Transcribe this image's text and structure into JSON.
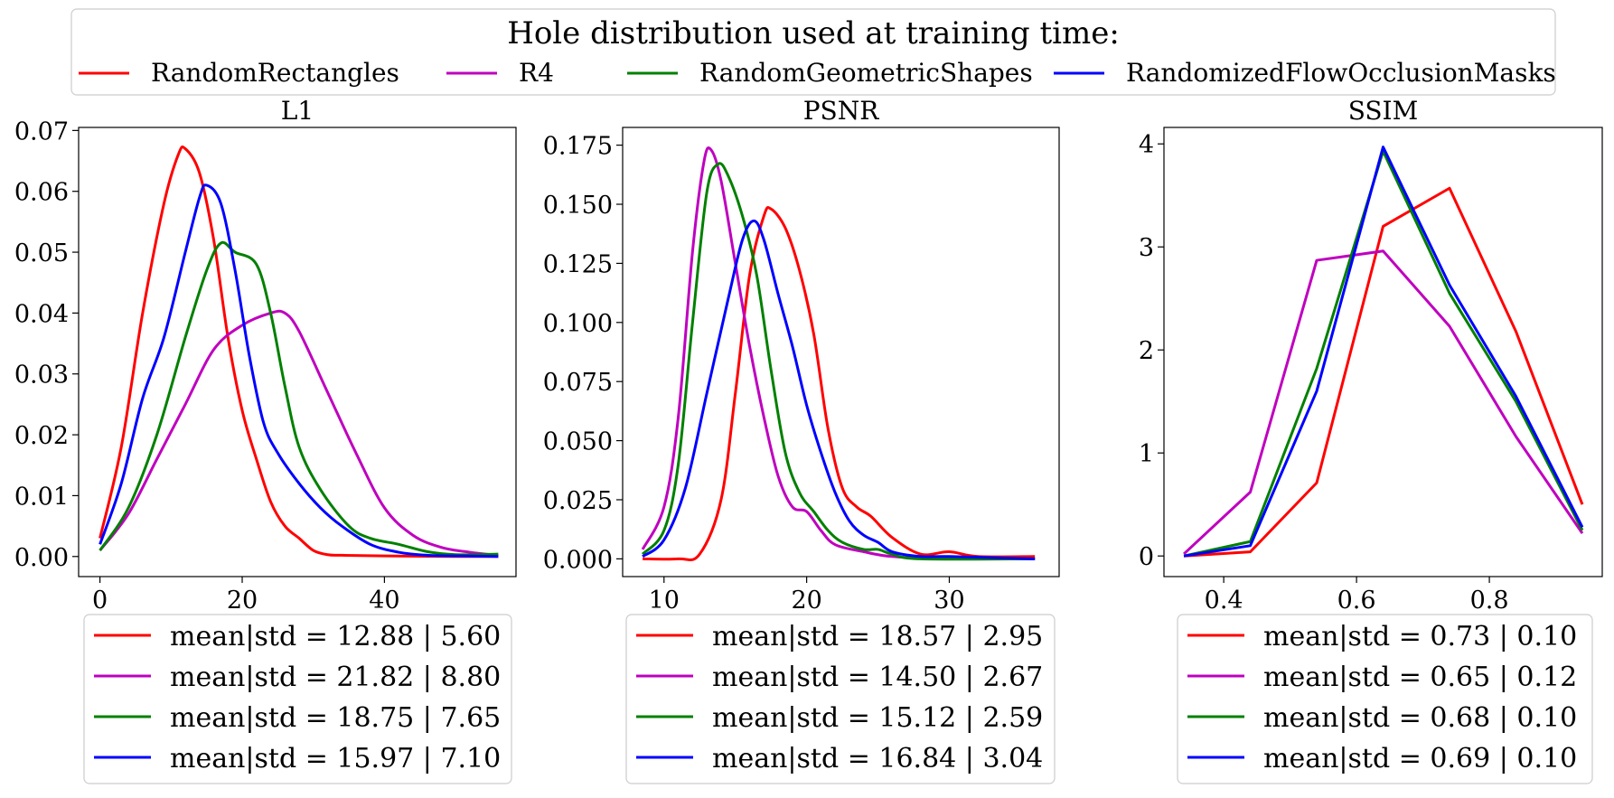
{
  "figure_title": "Hole distribution used at training time:",
  "colors": {
    "RandomRectangles": "#ff0000",
    "R4": "#bf00bf",
    "RandomGeometricShapes": "#008000",
    "RandomizedFlowOcclusionMasks": "#0000ff"
  },
  "legend": [
    {
      "label": "RandomRectangles",
      "color": "#ff0000"
    },
    {
      "label": "R4",
      "color": "#bf00bf"
    },
    {
      "label": "RandomGeometricShapes",
      "color": "#008000"
    },
    {
      "label": "RandomizedFlowOcclusionMasks",
      "color": "#0000ff"
    }
  ],
  "chart_data": [
    {
      "type": "line",
      "title": "L1",
      "xlim": [
        -3.0,
        58.5
      ],
      "ylim": [
        -0.0033,
        0.0705
      ],
      "xticks": [
        0,
        20,
        40
      ],
      "xtick_labels": [
        "0",
        "20",
        "40"
      ],
      "yticks": [
        0.0,
        0.01,
        0.02,
        0.03,
        0.04,
        0.05,
        0.06,
        0.07
      ],
      "ytick_labels": [
        "0.00",
        "0.01",
        "0.02",
        "0.03",
        "0.04",
        "0.05",
        "0.06",
        "0.07"
      ],
      "smooth": true,
      "series": [
        {
          "name": "RandomRectangles",
          "color": "#ff0000",
          "x": [
            0,
            3,
            6,
            9,
            11,
            12,
            14,
            16,
            18,
            20,
            22,
            24,
            26,
            28,
            30,
            32,
            34,
            40,
            50,
            56
          ],
          "y": [
            0.003,
            0.018,
            0.04,
            0.058,
            0.066,
            0.067,
            0.063,
            0.052,
            0.036,
            0.024,
            0.016,
            0.009,
            0.005,
            0.003,
            0.001,
            0.0003,
            0.0002,
            0.0001,
            0.0,
            0.0
          ]
        },
        {
          "name": "R4",
          "color": "#bf00bf",
          "x": [
            0,
            4,
            8,
            12,
            16,
            20,
            24,
            26,
            28,
            32,
            36,
            40,
            44,
            48,
            52,
            56
          ],
          "y": [
            0.001,
            0.007,
            0.016,
            0.025,
            0.034,
            0.038,
            0.04,
            0.04,
            0.037,
            0.027,
            0.017,
            0.008,
            0.0035,
            0.0015,
            0.0007,
            0.0002
          ]
        },
        {
          "name": "RandomGeometricShapes",
          "color": "#008000",
          "x": [
            0,
            4,
            8,
            12,
            15,
            17,
            19,
            22,
            24,
            26,
            28,
            31,
            35,
            38,
            42,
            46,
            50,
            56
          ],
          "y": [
            0.001,
            0.008,
            0.02,
            0.036,
            0.047,
            0.0515,
            0.05,
            0.048,
            0.04,
            0.028,
            0.018,
            0.011,
            0.005,
            0.003,
            0.002,
            0.0008,
            0.0003,
            0.0004
          ]
        },
        {
          "name": "RandomizedFlowOcclusionMasks",
          "color": "#0000ff",
          "x": [
            0,
            3,
            6,
            9,
            12,
            14,
            15,
            17,
            19,
            21,
            23,
            25,
            28,
            31,
            34,
            38,
            42,
            46,
            50,
            56
          ],
          "y": [
            0.002,
            0.012,
            0.026,
            0.036,
            0.05,
            0.059,
            0.061,
            0.058,
            0.047,
            0.033,
            0.022,
            0.017,
            0.012,
            0.008,
            0.005,
            0.002,
            0.0007,
            0.0002,
            0.0001,
            0.0
          ]
        }
      ],
      "legend_entries": [
        {
          "color": "#ff0000",
          "label": "mean|std = 12.88 | 5.60"
        },
        {
          "color": "#bf00bf",
          "label": "mean|std = 21.82 | 8.80"
        },
        {
          "color": "#008000",
          "label": "mean|std = 18.75 | 7.65"
        },
        {
          "color": "#0000ff",
          "label": "mean|std = 15.97 | 7.10"
        }
      ]
    },
    {
      "type": "line",
      "title": "PSNR",
      "xlim": [
        7.1,
        37.7
      ],
      "ylim": [
        -0.0075,
        0.1825
      ],
      "xticks": [
        10,
        20,
        30
      ],
      "xtick_labels": [
        "10",
        "20",
        "30"
      ],
      "yticks": [
        0.0,
        0.025,
        0.05,
        0.075,
        0.1,
        0.125,
        0.15,
        0.175
      ],
      "ytick_labels": [
        "0.000",
        "0.025",
        "0.050",
        "0.075",
        "0.100",
        "0.125",
        "0.150",
        "0.175"
      ],
      "smooth": true,
      "series": [
        {
          "name": "RandomRectangles",
          "color": "#ff0000",
          "x": [
            8.5,
            11,
            12.5,
            14,
            15,
            16,
            17,
            17.5,
            18.5,
            19.5,
            20.5,
            21.5,
            22.5,
            23.5,
            24.5,
            26,
            28,
            30,
            32,
            36
          ],
          "y": [
            0.0,
            0.0,
            0.002,
            0.025,
            0.07,
            0.12,
            0.145,
            0.148,
            0.14,
            0.122,
            0.095,
            0.055,
            0.03,
            0.022,
            0.018,
            0.009,
            0.002,
            0.003,
            0.001,
            0.001
          ]
        },
        {
          "name": "R4",
          "color": "#bf00bf",
          "x": [
            8.5,
            10,
            11,
            12,
            12.8,
            13.3,
            14,
            15,
            16,
            17,
            18,
            19,
            20,
            21,
            22,
            24,
            26,
            30,
            36
          ],
          "y": [
            0.004,
            0.022,
            0.06,
            0.13,
            0.168,
            0.173,
            0.16,
            0.125,
            0.09,
            0.06,
            0.035,
            0.022,
            0.02,
            0.012,
            0.006,
            0.003,
            0.001,
            0.0,
            0.0
          ]
        },
        {
          "name": "RandomGeometricShapes",
          "color": "#008000",
          "x": [
            8.5,
            10,
            11,
            12,
            13,
            13.8,
            14.5,
            15.5,
            16.5,
            17.5,
            18.5,
            19.5,
            20.5,
            21.5,
            22.5,
            24,
            25,
            26,
            28,
            36
          ],
          "y": [
            0.002,
            0.012,
            0.04,
            0.1,
            0.155,
            0.167,
            0.162,
            0.145,
            0.12,
            0.08,
            0.045,
            0.028,
            0.02,
            0.012,
            0.007,
            0.004,
            0.004,
            0.002,
            0.0,
            0.0
          ]
        },
        {
          "name": "RandomizedFlowOcclusionMasks",
          "color": "#0000ff",
          "x": [
            8.5,
            10,
            11.5,
            13,
            14.5,
            15.5,
            16.3,
            17,
            18,
            19,
            20,
            21,
            22,
            23,
            24,
            25,
            26,
            28,
            30,
            36
          ],
          "y": [
            0.001,
            0.008,
            0.03,
            0.07,
            0.11,
            0.135,
            0.143,
            0.135,
            0.112,
            0.09,
            0.065,
            0.045,
            0.028,
            0.016,
            0.01,
            0.007,
            0.003,
            0.001,
            0.001,
            0.0
          ]
        }
      ],
      "legend_entries": [
        {
          "color": "#ff0000",
          "label": "mean|std = 18.57 | 2.95"
        },
        {
          "color": "#bf00bf",
          "label": "mean|std = 14.50 | 2.67"
        },
        {
          "color": "#008000",
          "label": "mean|std = 15.12 | 2.59"
        },
        {
          "color": "#0000ff",
          "label": "mean|std = 16.84 | 3.04"
        }
      ]
    },
    {
      "type": "line",
      "title": "SSIM",
      "xlim": [
        0.31,
        0.97
      ],
      "ylim": [
        -0.2,
        4.16
      ],
      "xticks": [
        0.4,
        0.6,
        0.8
      ],
      "xtick_labels": [
        "0.4",
        "0.6",
        "0.8"
      ],
      "yticks": [
        0,
        1,
        2,
        3,
        4
      ],
      "ytick_labels": [
        "0",
        "1",
        "2",
        "3",
        "4"
      ],
      "smooth": false,
      "series": [
        {
          "name": "RandomRectangles",
          "color": "#ff0000",
          "x": [
            0.34,
            0.44,
            0.54,
            0.64,
            0.74,
            0.84,
            0.94
          ],
          "y": [
            0.0,
            0.04,
            0.71,
            3.2,
            3.57,
            2.18,
            0.5
          ]
        },
        {
          "name": "R4",
          "color": "#bf00bf",
          "x": [
            0.34,
            0.44,
            0.54,
            0.64,
            0.74,
            0.84,
            0.94
          ],
          "y": [
            0.02,
            0.62,
            2.87,
            2.96,
            2.23,
            1.16,
            0.22
          ]
        },
        {
          "name": "RandomGeometricShapes",
          "color": "#008000",
          "x": [
            0.34,
            0.44,
            0.54,
            0.64,
            0.74,
            0.84,
            0.94
          ],
          "y": [
            0.0,
            0.14,
            1.82,
            3.93,
            2.55,
            1.5,
            0.25
          ]
        },
        {
          "name": "RandomizedFlowOcclusionMasks",
          "color": "#0000ff",
          "x": [
            0.34,
            0.44,
            0.54,
            0.64,
            0.74,
            0.84,
            0.94
          ],
          "y": [
            0.0,
            0.1,
            1.6,
            3.97,
            2.63,
            1.55,
            0.28
          ]
        }
      ],
      "legend_entries": [
        {
          "color": "#ff0000",
          "label": "mean|std = 0.73 | 0.10"
        },
        {
          "color": "#bf00bf",
          "label": "mean|std = 0.65 | 0.12"
        },
        {
          "color": "#008000",
          "label": "mean|std = 0.68 | 0.10"
        },
        {
          "color": "#0000ff",
          "label": "mean|std = 0.69 | 0.10"
        }
      ]
    }
  ]
}
